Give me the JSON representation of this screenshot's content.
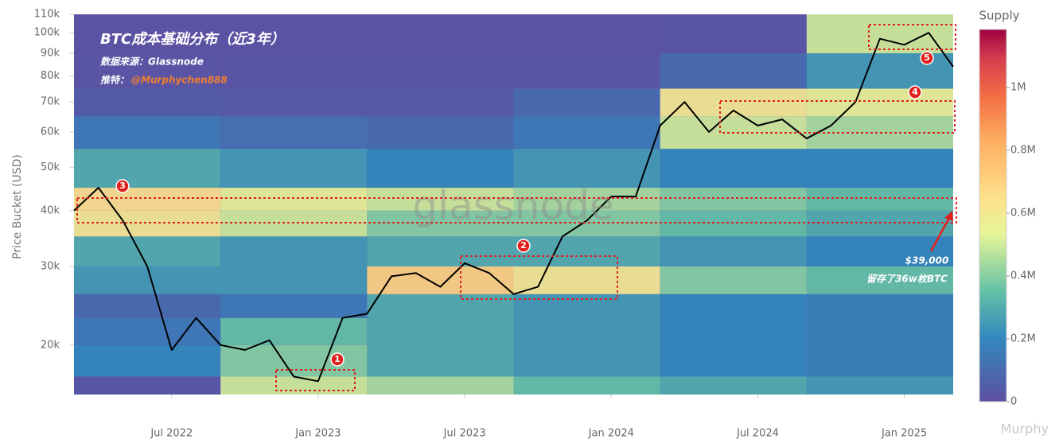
{
  "chart_data": {
    "type": "heatmap",
    "title": "BTC成本基础分布（近3年）",
    "source": "数据来源：Glassnode",
    "twitter_label": "推特：",
    "twitter_handle": "@Murphychen888",
    "watermark": "glassnode",
    "credit": "Murphy",
    "y_label": "Price Bucket (USD)",
    "colorbar_title": "Supply",
    "y_log": true,
    "ylim": [
      15500,
      110000
    ],
    "yticks": [
      {
        "value": 20000,
        "label": "20k"
      },
      {
        "value": 30000,
        "label": "30k"
      },
      {
        "value": 40000,
        "label": "40k"
      },
      {
        "value": 50000,
        "label": "50k"
      },
      {
        "value": 60000,
        "label": "60k"
      },
      {
        "value": 70000,
        "label": "70k"
      },
      {
        "value": 80000,
        "label": "80k"
      },
      {
        "value": 90000,
        "label": "90k"
      },
      {
        "value": 100000,
        "label": "100k"
      },
      {
        "value": 110000,
        "label": "110k"
      }
    ],
    "xlim": [
      "2022-03",
      "2025-03"
    ],
    "xticks": [
      {
        "value": "2022-07",
        "label": "Jul 2022"
      },
      {
        "value": "2023-01",
        "label": "Jan 2023"
      },
      {
        "value": "2023-07",
        "label": "Jul 2023"
      },
      {
        "value": "2024-01",
        "label": "Jan 2024"
      },
      {
        "value": "2024-07",
        "label": "Jul 2024"
      },
      {
        "value": "2025-01",
        "label": "Jan 2025"
      }
    ],
    "x": [
      "2022-03",
      "2022-04",
      "2022-05",
      "2022-06",
      "2022-07",
      "2022-08",
      "2022-09",
      "2022-10",
      "2022-11",
      "2022-12",
      "2023-01",
      "2023-02",
      "2023-03",
      "2023-04",
      "2023-05",
      "2023-06",
      "2023-07",
      "2023-08",
      "2023-09",
      "2023-10",
      "2023-11",
      "2023-12",
      "2024-01",
      "2024-02",
      "2024-03",
      "2024-04",
      "2024-05",
      "2024-06",
      "2024-07",
      "2024-08",
      "2024-09",
      "2024-10",
      "2024-11",
      "2024-12",
      "2025-01",
      "2025-02",
      "2025-03"
    ],
    "line": {
      "color": "#000000",
      "values": [
        40000,
        45000,
        38000,
        30000,
        19500,
        23000,
        20000,
        19500,
        20500,
        17000,
        16600,
        23000,
        23500,
        28500,
        29000,
        27000,
        30500,
        29000,
        26000,
        27000,
        35000,
        38000,
        43000,
        43000,
        62000,
        70000,
        60000,
        67000,
        62000,
        64000,
        58000,
        62000,
        70000,
        97000,
        94000,
        100000,
        84000
      ]
    },
    "heatmap": {
      "x_edges": [
        "2022-03",
        "2022-09",
        "2023-03",
        "2023-09",
        "2024-03",
        "2024-09",
        "2025-03"
      ],
      "y_edges": [
        15500,
        17000,
        20000,
        23000,
        26000,
        30000,
        35000,
        40000,
        45000,
        55000,
        65000,
        75000,
        90000,
        110000
      ],
      "values": [
        [
          30000,
          500000,
          450000,
          350000,
          300000,
          250000
        ],
        [
          200000,
          400000,
          300000,
          250000,
          200000,
          180000
        ],
        [
          150000,
          350000,
          300000,
          250000,
          200000,
          180000
        ],
        [
          100000,
          150000,
          300000,
          250000,
          200000,
          180000
        ],
        [
          250000,
          250000,
          700000,
          600000,
          400000,
          350000
        ],
        [
          300000,
          250000,
          300000,
          300000,
          250000,
          200000
        ],
        [
          600000,
          500000,
          400000,
          400000,
          350000,
          300000
        ],
        [
          650000,
          550000,
          500000,
          450000,
          400000,
          350000
        ],
        [
          300000,
          250000,
          200000,
          250000,
          200000,
          200000
        ],
        [
          150000,
          120000,
          100000,
          150000,
          500000,
          450000
        ],
        [
          50000,
          40000,
          40000,
          100000,
          600000,
          550000
        ],
        [
          20000,
          20000,
          20000,
          20000,
          100000,
          250000
        ],
        [
          10000,
          10000,
          10000,
          10000,
          20000,
          500000
        ]
      ]
    },
    "zlim": [
      0,
      1185000
    ],
    "zticks": [
      0,
      {
        "value": 200000,
        "label": "0.2M"
      },
      {
        "value": 400000,
        "label": "0.4M"
      },
      {
        "value": 600000,
        "label": "0.6M"
      },
      {
        "value": 800000,
        "label": "0.8M"
      },
      {
        "value": 1000000,
        "label": "1M"
      }
    ],
    "colorscale": [
      [
        0,
        "#5e4fa2"
      ],
      [
        0.17,
        "#3288bd"
      ],
      [
        0.3,
        "#66c2a5"
      ],
      [
        0.45,
        "#e6f598"
      ],
      [
        0.55,
        "#fee08b"
      ],
      [
        0.7,
        "#fdae61"
      ],
      [
        0.82,
        "#f46d43"
      ],
      [
        0.92,
        "#d53e4f"
      ],
      [
        1,
        "#9e0142"
      ]
    ],
    "annotations": {
      "markers": [
        "1",
        "2",
        "3",
        "4",
        "5"
      ],
      "price_note": "$39,000",
      "supply_note": "留存了36w枚BTC"
    }
  }
}
